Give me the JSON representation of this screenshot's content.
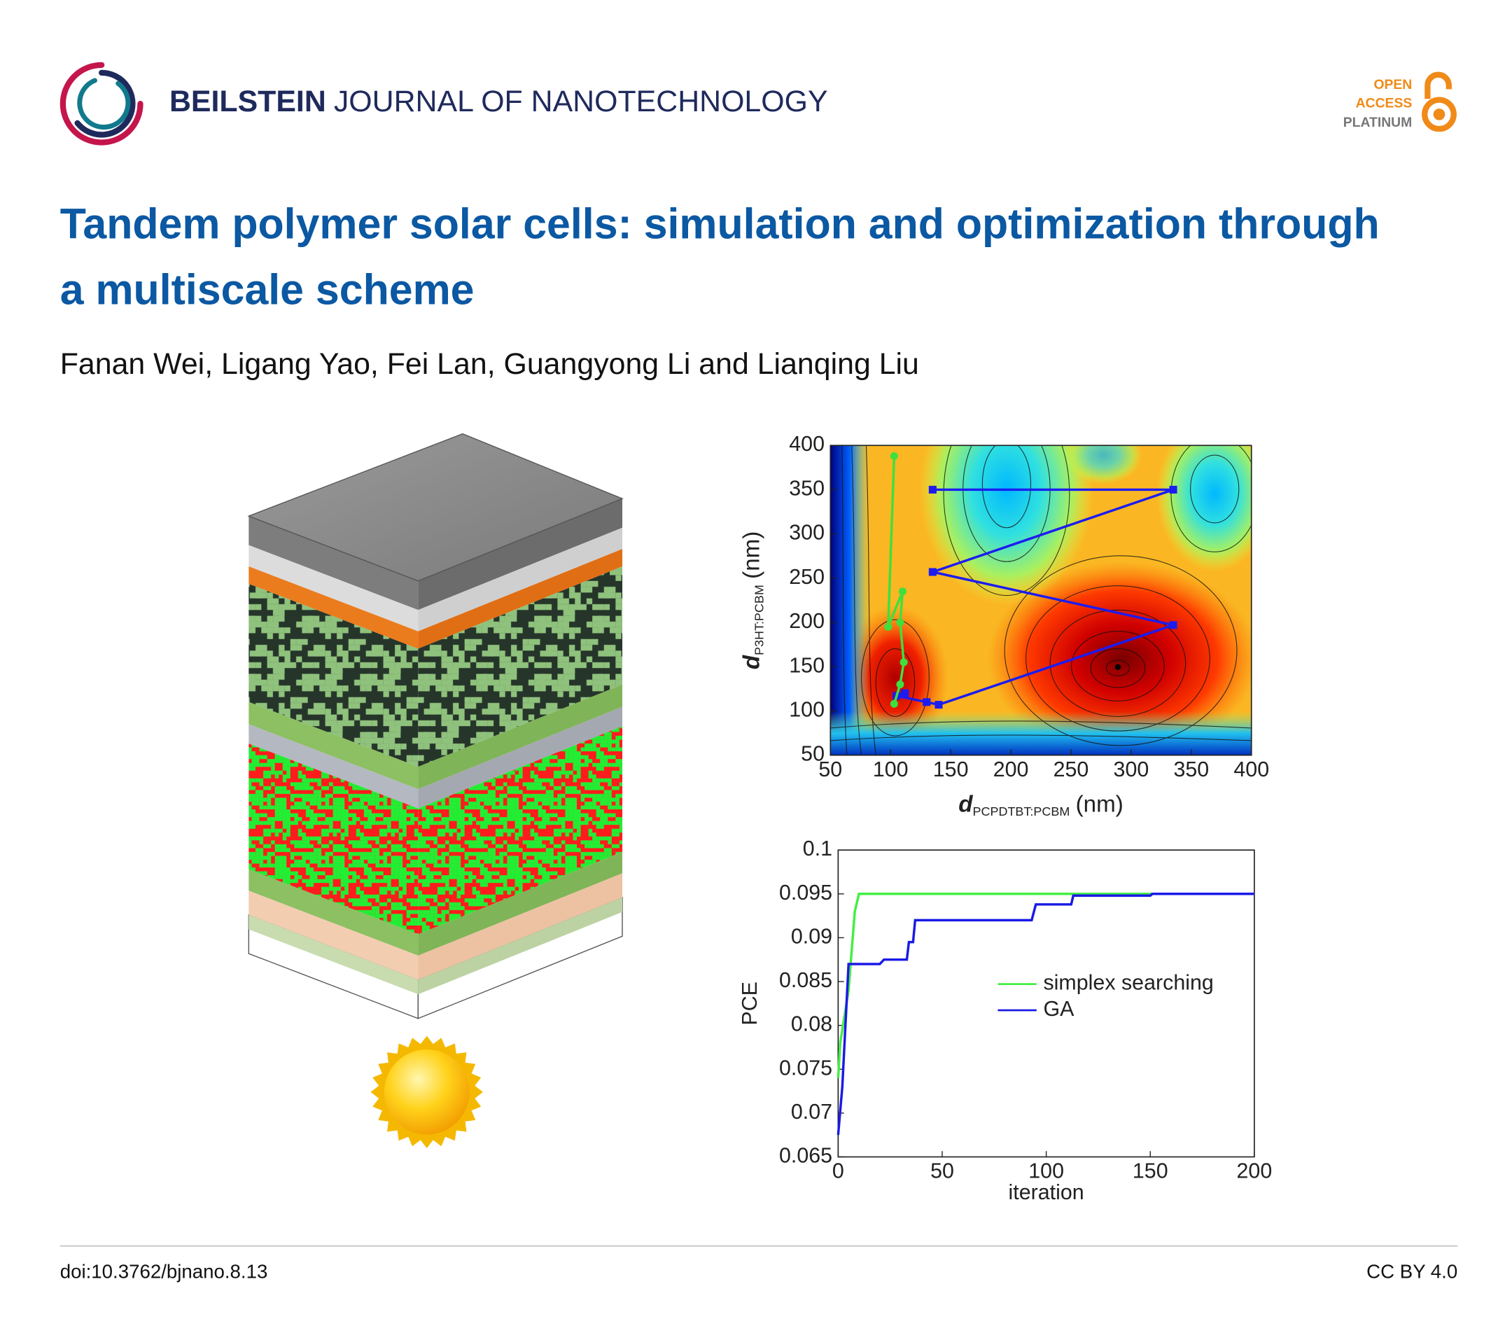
{
  "header": {
    "journal_bold": "BEILSTEIN",
    "journal_rest": "JOURNAL OF NANOTECHNOLOGY",
    "badge": [
      "OPEN",
      "ACCESS",
      "PLATINUM"
    ]
  },
  "title": "Tandem polymer solar cells: simulation and optimization through a multiscale scheme",
  "authors": "Fanan Wei, Ligang Yao, Fei Lan, Guangyong Li and Lianqing Liu",
  "chart_data": [
    {
      "type": "contour",
      "xlim": [
        50,
        400
      ],
      "ylim": [
        50,
        400
      ],
      "xticks": [
        50,
        100,
        150,
        200,
        250,
        300,
        350,
        400
      ],
      "yticks": [
        50,
        100,
        150,
        200,
        250,
        300,
        350,
        400
      ],
      "x_label": {
        "symbol": "d",
        "subscript": "PCPDTBT:PCBM",
        "unit": "(nm)"
      },
      "y_label": {
        "symbol": "d",
        "subscript": "P3HT:PCBM",
        "unit": "(nm)"
      },
      "series": [
        {
          "color": "#1c1cf0",
          "marker": "square",
          "x": [
            135,
            335,
            135,
            335,
            140,
            130,
            105,
            112
          ],
          "values": [
            350,
            350,
            257,
            197,
            107,
            110,
            117,
            120
          ]
        },
        {
          "color": "#3ee03e",
          "marker": "circle",
          "x": [
            103,
            98,
            110,
            108,
            111,
            108,
            103
          ],
          "values": [
            388,
            195,
            235,
            200,
            155,
            130,
            108
          ]
        }
      ]
    },
    {
      "type": "line",
      "xlim": [
        0,
        200
      ],
      "ylim": [
        0.065,
        0.1
      ],
      "xticks": [
        0,
        50,
        100,
        150,
        200
      ],
      "yticks": [
        0.065,
        0.07,
        0.075,
        0.08,
        0.085,
        0.09,
        0.095,
        0.1
      ],
      "x_label": "iteration",
      "y_label": "PCE",
      "legend": "right",
      "series": [
        {
          "name": "simplex searching",
          "color": "#44ee44",
          "x": [
            0,
            1,
            5,
            7,
            8,
            10,
            200
          ],
          "values": [
            0.074,
            0.078,
            0.084,
            0.09,
            0.093,
            0.095,
            0.095
          ]
        },
        {
          "name": "GA",
          "color": "#1a1ae6",
          "x": [
            0,
            2,
            5,
            20,
            22,
            33,
            34,
            36,
            37,
            93,
            95,
            112,
            113,
            150,
            151,
            200
          ],
          "values": [
            0.0675,
            0.073,
            0.087,
            0.087,
            0.0875,
            0.0875,
            0.0895,
            0.0895,
            0.092,
            0.092,
            0.0938,
            0.0938,
            0.0948,
            0.0948,
            0.095,
            0.095
          ]
        }
      ]
    }
  ],
  "footer": {
    "doi": "doi:10.3762/bjnano.8.13",
    "license": "CC BY 4.0"
  }
}
